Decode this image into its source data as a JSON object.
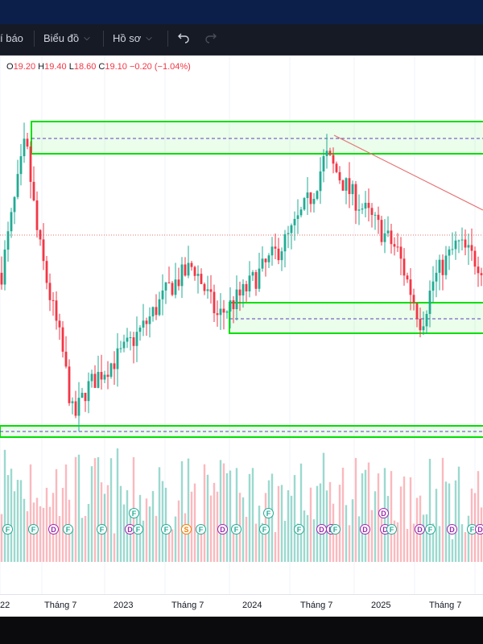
{
  "toolbar": {
    "alerts_label": "í báo",
    "chart_label": "Biểu đồ",
    "profile_label": "Hồ sơ",
    "undo_icon": "undo-arrow-icon",
    "redo_icon": "redo-arrow-icon"
  },
  "ohlc": {
    "o_label": "O",
    "o_value": "19.20",
    "h_label": "H",
    "h_value": "19.40",
    "l_label": "L",
    "l_value": "18.60",
    "c_label": "C",
    "c_value": "19.10",
    "change": "−0.20 (−1.04%)"
  },
  "time_axis": [
    "22",
    "Tháng 7",
    "2023",
    "Tháng 7",
    "2024",
    "Tháng 7",
    "2025",
    "Tháng 7"
  ],
  "colors": {
    "up": "#22ab94",
    "down": "#f23645",
    "zone": "#00e000",
    "trendline": "#e57373",
    "dashed": "#5c3fbf"
  },
  "chart_data": {
    "type": "candlestick",
    "title": "",
    "x_labels": [
      "22",
      "Tháng 7",
      "2023",
      "Tháng 7",
      "2024",
      "Tháng 7",
      "2025",
      "Tháng 7"
    ],
    "price_path": [
      [
        "2022-05",
        19.5
      ],
      [
        "2022-06",
        24.0
      ],
      [
        "2022-07",
        28.5
      ],
      [
        "2022-08",
        22.0
      ],
      [
        "2022-09",
        18.0
      ],
      [
        "2022-10",
        14.5
      ],
      [
        "2022-11",
        9.5
      ],
      [
        "2022-12",
        11.5
      ],
      [
        "2023-01",
        12.5
      ],
      [
        "2023-03",
        14.0
      ],
      [
        "2023-05",
        16.0
      ],
      [
        "2023-07",
        18.5
      ],
      [
        "2023-09",
        20.0
      ],
      [
        "2023-11",
        16.5
      ],
      [
        "2024-01",
        18.0
      ],
      [
        "2024-03",
        20.0
      ],
      [
        "2024-05",
        22.0
      ],
      [
        "2024-07",
        25.0
      ],
      [
        "2024-08",
        27.5
      ],
      [
        "2024-10",
        25.0
      ],
      [
        "2024-12",
        23.0
      ],
      [
        "2025-02",
        21.0
      ],
      [
        "2025-04",
        16.0
      ],
      [
        "2025-05",
        19.0
      ],
      [
        "2025-07",
        21.5
      ],
      [
        "2025-09",
        20.0
      ]
    ],
    "last_ohlc": {
      "open": 19.2,
      "high": 19.4,
      "low": 18.6,
      "close": 19.1,
      "change": -0.2,
      "change_pct": -1.04
    },
    "event_markers": [
      "F",
      "F",
      "D",
      "F",
      "F",
      "D",
      "F",
      "F",
      "S",
      "F",
      "D",
      "F",
      "F",
      "F",
      "F",
      "D",
      "D",
      "F",
      "D",
      "D",
      "F",
      "D",
      "F",
      "D",
      "F",
      "D",
      "F",
      "D"
    ],
    "drawings": [
      "resistance-zone-top",
      "support-zone-mid",
      "support-zone-bottom",
      "descending-trendline",
      "dotted-current-price-line"
    ]
  }
}
